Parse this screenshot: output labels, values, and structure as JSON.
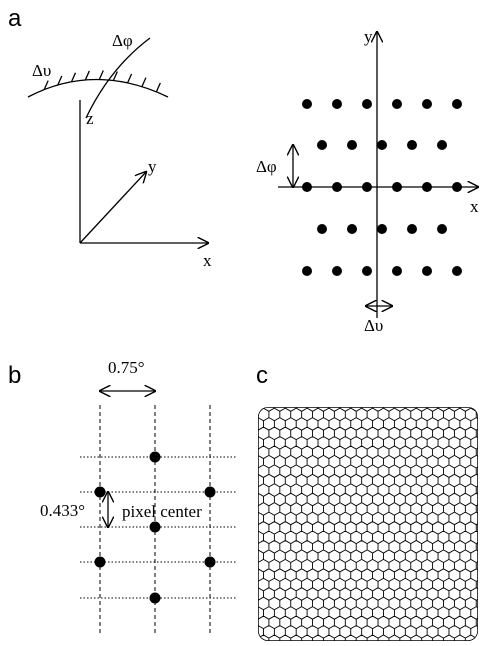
{
  "panel_a": {
    "label": "a",
    "sphere": {
      "delta_upsilon": "Δυ",
      "delta_phi": "Δφ",
      "z": "z",
      "y": "y",
      "x": "x"
    },
    "grid": {
      "y": "y",
      "x": "x",
      "delta_phi": "Δφ",
      "delta_upsilon": "Δυ"
    }
  },
  "panel_b": {
    "label": "b",
    "spacing_x": "0.75°",
    "spacing_y": "0.433°",
    "annotation": "pixel center"
  },
  "panel_c": {
    "label": "c"
  }
}
